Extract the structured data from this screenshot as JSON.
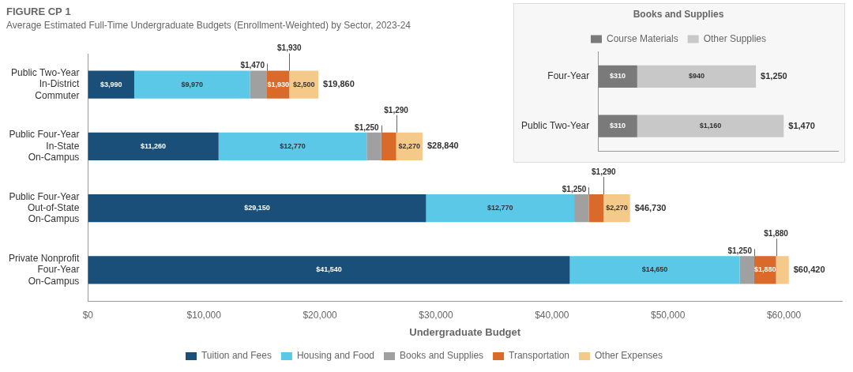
{
  "chart_data": [
    {
      "type": "bar",
      "orientation": "horizontal",
      "stacked": true,
      "title": "FIGURE CP 1",
      "subtitle": "Average Estimated Full-Time Undergraduate Budgets (Enrollment-Weighted) by Sector, 2023-24",
      "xlabel": "Undergraduate Budget",
      "categories": [
        "Private Nonprofit\nFour-Year\nOn-Campus",
        "Public Four-Year\nOut-of-State\nOn-Campus",
        "Public Four-Year\nIn-State\nOn-Campus",
        "Public Two-Year\nIn-District\nCommuter"
      ],
      "series": [
        {
          "name": "Tuition and Fees",
          "color": "#1a4f7a",
          "values": [
            41540,
            29150,
            11260,
            3990
          ],
          "value_labels": [
            "$41,540",
            "$29,150",
            "$11,260",
            "$3,990"
          ]
        },
        {
          "name": "Housing and Food",
          "color": "#5bc8e8",
          "values": [
            14650,
            12770,
            12770,
            9970
          ],
          "value_labels": [
            "$14,650",
            "$12,770",
            "$12,770",
            "$9,970"
          ]
        },
        {
          "name": "Books and Supplies",
          "color": "#a0a0a0",
          "values": [
            1250,
            1250,
            1250,
            1470
          ],
          "value_labels": [
            null,
            null,
            null,
            null
          ]
        },
        {
          "name": "Transportation",
          "color": "#d96a2a",
          "values": [
            1880,
            1290,
            1290,
            1930
          ],
          "value_labels": [
            "$1,880",
            null,
            null,
            "$1,930"
          ]
        },
        {
          "name": "Other Expenses",
          "color": "#f5c98a",
          "values": [
            1100,
            2270,
            2270,
            2500
          ],
          "value_labels": [
            null,
            "$2,270",
            "$2,270",
            "$2,500"
          ]
        }
      ],
      "totals": [
        60420,
        46730,
        28840,
        19860
      ],
      "total_labels": [
        "$60,420",
        "$46,730",
        "$28,840",
        "$19,860"
      ],
      "annotations": [
        {
          "text": "$1,250",
          "series": "Books and Supplies",
          "category": "Private Nonprofit\nFour-Year\nOn-Campus"
        },
        {
          "text": "$1,880",
          "series": "Transportation",
          "category": "Private Nonprofit\nFour-Year\nOn-Campus"
        },
        {
          "text": "$1,250",
          "series": "Books and Supplies",
          "category": "Public Four-Year\nOut-of-State\nOn-Campus"
        },
        {
          "text": "$1,290",
          "series": "Transportation",
          "category": "Public Four-Year\nOut-of-State\nOn-Campus"
        },
        {
          "text": "$1,250",
          "series": "Books and Supplies",
          "category": "Public Four-Year\nIn-State\nOn-Campus"
        },
        {
          "text": "$1,290",
          "series": "Transportation",
          "category": "Public Four-Year\nIn-State\nOn-Campus"
        },
        {
          "text": "$1,470",
          "series": "Books and Supplies",
          "category": "Public Two-Year\nIn-District\nCommuter"
        },
        {
          "text": "$1,930",
          "series": "Transportation",
          "category": "Public Two-Year\nIn-District\nCommuter"
        }
      ],
      "data_labels": true,
      "xlim": [
        0,
        65000
      ],
      "xticks": [
        {
          "value": 0,
          "label": "$0"
        },
        {
          "value": 10000,
          "label": "$10,000"
        },
        {
          "value": 20000,
          "label": "$20,000"
        },
        {
          "value": 30000,
          "label": "$30,000"
        },
        {
          "value": 40000,
          "label": "$40,000"
        },
        {
          "value": 50000,
          "label": "$50,000"
        },
        {
          "value": 60000,
          "label": "$60,000"
        }
      ],
      "grid": false,
      "legend": "bottom"
    },
    {
      "type": "bar",
      "orientation": "horizontal",
      "stacked": true,
      "title": "Books and Supplies",
      "categories": [
        "Public Two-Year",
        "Four-Year"
      ],
      "series": [
        {
          "name": "Course Materials",
          "color": "#7a7a7a",
          "values": [
            310,
            310
          ],
          "value_labels": [
            "$310",
            "$310"
          ]
        },
        {
          "name": "Other Supplies",
          "color": "#c8c8c8",
          "values": [
            1160,
            940
          ],
          "value_labels": [
            "$1,160",
            "$940"
          ]
        }
      ],
      "totals": [
        1470,
        1250
      ],
      "total_labels": [
        "$1,470",
        "$1,250"
      ],
      "data_labels": true,
      "xlim": [
        0,
        1900
      ],
      "tick_labels": "y",
      "grid": false,
      "legend": "top"
    }
  ]
}
